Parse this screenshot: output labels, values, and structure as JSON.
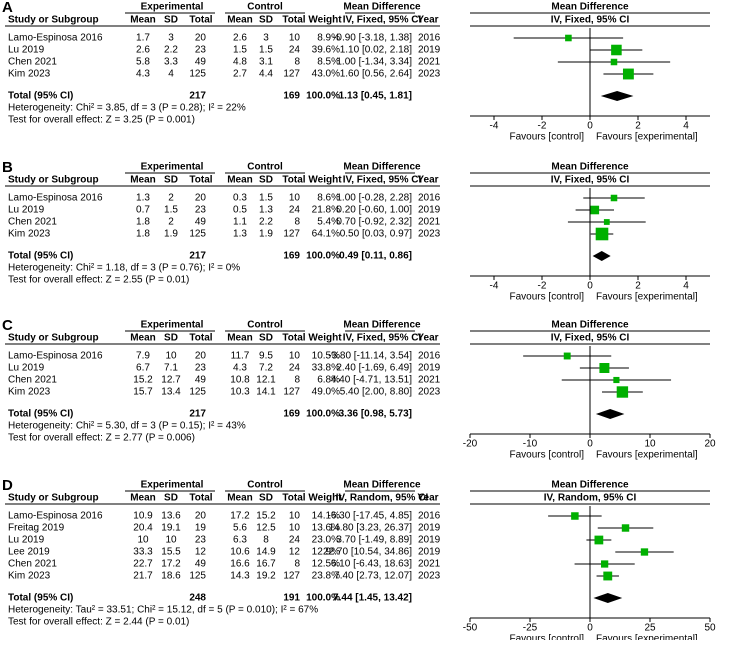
{
  "chart_data": [
    {
      "type": "forest",
      "panel": "A",
      "headers": {
        "experimental": "Experimental",
        "control": "Control",
        "md": "Mean Difference",
        "md_plot": "Mean Difference",
        "study": "Study or Subgroup",
        "exp_mean": "Mean",
        "exp_sd": "SD",
        "exp_n": "Total",
        "ctl_mean": "Mean",
        "ctl_sd": "SD",
        "ctl_n": "Total",
        "weight": "Weight",
        "method": "IV, Fixed, 95% CI",
        "year": "Year",
        "method_plot": "IV, Fixed, 95% CI"
      },
      "studies": [
        {
          "study": "Lamo-Espinosa 2016",
          "exp_mean": 1.7,
          "exp_sd": 3,
          "exp_n": 20,
          "ctl_mean": 2.6,
          "ctl_sd": 3,
          "ctl_n": 10,
          "weight": 8.9,
          "weight_label": "8.9%",
          "md": -0.9,
          "ci_low": -3.18,
          "ci_high": 1.38,
          "ci_label": "-0.90 [-3.18, 1.38]",
          "year": 2016
        },
        {
          "study": "Lu 2019",
          "exp_mean": 2.6,
          "exp_sd": 2.2,
          "exp_n": 23,
          "ctl_mean": 1.5,
          "ctl_sd": 1.5,
          "ctl_n": 24,
          "weight": 39.6,
          "weight_label": "39.6%",
          "md": 1.1,
          "ci_low": 0.02,
          "ci_high": 2.18,
          "ci_label": "1.10 [0.02, 2.18]",
          "year": 2019
        },
        {
          "study": "Chen 2021",
          "exp_mean": 5.8,
          "exp_sd": 3.3,
          "exp_n": 49,
          "ctl_mean": 4.8,
          "ctl_sd": 3.1,
          "ctl_n": 8,
          "weight": 8.5,
          "weight_label": "8.5%",
          "md": 1.0,
          "ci_low": -1.34,
          "ci_high": 3.34,
          "ci_label": "1.00 [-1.34, 3.34]",
          "year": 2021
        },
        {
          "study": "Kim 2023",
          "exp_mean": 4.3,
          "exp_sd": 4,
          "exp_n": 125,
          "ctl_mean": 2.7,
          "ctl_sd": 4.4,
          "ctl_n": 127,
          "weight": 43.0,
          "weight_label": "43.0%",
          "md": 1.6,
          "ci_low": 0.56,
          "ci_high": 2.64,
          "ci_label": "1.60 [0.56, 2.64]",
          "year": 2023
        }
      ],
      "total": {
        "label": "Total (95% CI)",
        "exp_n": 217,
        "ctl_n": 169,
        "weight": 100,
        "weight_label": "100.0%",
        "md": 1.13,
        "ci_low": 0.45,
        "ci_high": 1.81,
        "ci_label": "1.13 [0.45, 1.81]"
      },
      "heterogeneity": "Heterogeneity: Chi² = 3.85, df = 3 (P = 0.28); I² = 22%",
      "overall_effect": "Test for overall effect: Z = 3.25 (P = 0.001)",
      "favours_left": "Favours [control]",
      "favours_right": "Favours [experimental]",
      "xlim": [
        -5,
        5
      ],
      "xticks": [
        -4,
        -2,
        0,
        2,
        4
      ],
      "color": "#00b000"
    },
    {
      "type": "forest",
      "panel": "B",
      "headers": {
        "experimental": "Experimental",
        "control": "Control",
        "md": "Mean Difference",
        "md_plot": "Mean Difference",
        "study": "Study or Subgroup",
        "exp_mean": "Mean",
        "exp_sd": "SD",
        "exp_n": "Total",
        "ctl_mean": "Mean",
        "ctl_sd": "SD",
        "ctl_n": "Total",
        "weight": "Weight",
        "method": "IV, Fixed, 95% CI",
        "year": "Year",
        "method_plot": "IV, Fixed, 95% CI"
      },
      "studies": [
        {
          "study": "Lamo-Espinosa 2016",
          "exp_mean": 1.3,
          "exp_sd": 2,
          "exp_n": 20,
          "ctl_mean": 0.3,
          "ctl_sd": 1.5,
          "ctl_n": 10,
          "weight": 8.6,
          "weight_label": "8.6%",
          "md": 1.0,
          "ci_low": -0.28,
          "ci_high": 2.28,
          "ci_label": "1.00 [-0.28, 2.28]",
          "year": 2016
        },
        {
          "study": "Lu 2019",
          "exp_mean": 0.7,
          "exp_sd": 1.5,
          "exp_n": 23,
          "ctl_mean": 0.5,
          "ctl_sd": 1.3,
          "ctl_n": 24,
          "weight": 21.8,
          "weight_label": "21.8%",
          "md": 0.2,
          "ci_low": -0.6,
          "ci_high": 1.0,
          "ci_label": "0.20 [-0.60, 1.00]",
          "year": 2019
        },
        {
          "study": "Chen 2021",
          "exp_mean": 1.8,
          "exp_sd": 2,
          "exp_n": 49,
          "ctl_mean": 1.1,
          "ctl_sd": 2.2,
          "ctl_n": 8,
          "weight": 5.4,
          "weight_label": "5.4%",
          "md": 0.7,
          "ci_low": -0.92,
          "ci_high": 2.32,
          "ci_label": "0.70 [-0.92, 2.32]",
          "year": 2021
        },
        {
          "study": "Kim 2023",
          "exp_mean": 1.8,
          "exp_sd": 1.9,
          "exp_n": 125,
          "ctl_mean": 1.3,
          "ctl_sd": 1.9,
          "ctl_n": 127,
          "weight": 64.1,
          "weight_label": "64.1%",
          "md": 0.5,
          "ci_low": 0.03,
          "ci_high": 0.97,
          "ci_label": "0.50 [0.03, 0.97]",
          "year": 2023
        }
      ],
      "total": {
        "label": "Total (95% CI)",
        "exp_n": 217,
        "ctl_n": 169,
        "weight": 100,
        "weight_label": "100.0%",
        "md": 0.49,
        "ci_low": 0.11,
        "ci_high": 0.86,
        "ci_label": "0.49 [0.11, 0.86]"
      },
      "heterogeneity": "Heterogeneity: Chi² = 1.18, df = 3 (P = 0.76); I² = 0%",
      "overall_effect": "Test for overall effect: Z = 2.55 (P = 0.01)",
      "favours_left": "Favours [control]",
      "favours_right": "Favours [experimental]",
      "xlim": [
        -5,
        5
      ],
      "xticks": [
        -4,
        -2,
        0,
        2,
        4
      ],
      "color": "#00b000"
    },
    {
      "type": "forest",
      "panel": "C",
      "headers": {
        "experimental": "Experimental",
        "control": "Control",
        "md": "Mean Difference",
        "md_plot": "Mean Difference",
        "study": "Study or Subgroup",
        "exp_mean": "Mean",
        "exp_sd": "SD",
        "exp_n": "Total",
        "ctl_mean": "Mean",
        "ctl_sd": "SD",
        "ctl_n": "Total",
        "weight": "Weight",
        "method": "IV, Fixed, 95% CI",
        "year": "Year",
        "method_plot": "IV, Fixed, 95% CI"
      },
      "studies": [
        {
          "study": "Lamo-Espinosa 2016",
          "exp_mean": 7.9,
          "exp_sd": 10,
          "exp_n": 20,
          "ctl_mean": 11.7,
          "ctl_sd": 9.5,
          "ctl_n": 10,
          "weight": 10.5,
          "weight_label": "10.5%",
          "md": -3.8,
          "ci_low": -11.14,
          "ci_high": 3.54,
          "ci_label": "-3.80 [-11.14, 3.54]",
          "year": 2016
        },
        {
          "study": "Lu 2019",
          "exp_mean": 6.7,
          "exp_sd": 7.1,
          "exp_n": 23,
          "ctl_mean": 4.3,
          "ctl_sd": 7.2,
          "ctl_n": 24,
          "weight": 33.8,
          "weight_label": "33.8%",
          "md": 2.4,
          "ci_low": -1.69,
          "ci_high": 6.49,
          "ci_label": "2.40 [-1.69, 6.49]",
          "year": 2019
        },
        {
          "study": "Chen 2021",
          "exp_mean": 15.2,
          "exp_sd": 12.7,
          "exp_n": 49,
          "ctl_mean": 10.8,
          "ctl_sd": 12.1,
          "ctl_n": 8,
          "weight": 6.8,
          "weight_label": "6.8%",
          "md": 4.4,
          "ci_low": -4.71,
          "ci_high": 13.51,
          "ci_label": "4.40 [-4.71, 13.51]",
          "year": 2021
        },
        {
          "study": "Kim 2023",
          "exp_mean": 15.7,
          "exp_sd": 13.4,
          "exp_n": 125,
          "ctl_mean": 10.3,
          "ctl_sd": 14.1,
          "ctl_n": 127,
          "weight": 49.0,
          "weight_label": "49.0%",
          "md": 5.4,
          "ci_low": 2.0,
          "ci_high": 8.8,
          "ci_label": "5.40 [2.00, 8.80]",
          "year": 2023
        }
      ],
      "total": {
        "label": "Total (95% CI)",
        "exp_n": 217,
        "ctl_n": 169,
        "weight": 100,
        "weight_label": "100.0%",
        "md": 3.36,
        "ci_low": 0.98,
        "ci_high": 5.73,
        "ci_label": "3.36 [0.98, 5.73]"
      },
      "heterogeneity": "Heterogeneity: Chi² = 5.30, df = 3 (P = 0.15); I² = 43%",
      "overall_effect": "Test for overall effect: Z = 2.77 (P = 0.006)",
      "favours_left": "Favours [control]",
      "favours_right": "Favours [experimental]",
      "xlim": [
        -20,
        20
      ],
      "xticks": [
        -20,
        -10,
        0,
        10,
        20
      ],
      "color": "#00b000"
    },
    {
      "type": "forest",
      "panel": "D",
      "headers": {
        "experimental": "Experimental",
        "control": "Control",
        "md": "Mean Difference",
        "md_plot": "Mean Difference",
        "study": "Study or Subgroup",
        "exp_mean": "Mean",
        "exp_sd": "SD",
        "exp_n": "Total",
        "ctl_mean": "Mean",
        "ctl_sd": "SD",
        "ctl_n": "Total",
        "weight": "Weight",
        "method": "IV, Random, 95% CI",
        "year": "Year",
        "method_plot": "IV, Random, 95% CI"
      },
      "studies": [
        {
          "study": "Lamo-Espinosa 2016",
          "exp_mean": 10.9,
          "exp_sd": 13.6,
          "exp_n": 20,
          "ctl_mean": 17.2,
          "ctl_sd": 15.2,
          "ctl_n": 10,
          "weight": 14.1,
          "weight_label": "14.1%",
          "md": -6.3,
          "ci_low": -17.45,
          "ci_high": 4.85,
          "ci_label": "-6.30 [-17.45, 4.85]",
          "year": 2016
        },
        {
          "study": "Freitag 2019",
          "exp_mean": 20.4,
          "exp_sd": 19.1,
          "exp_n": 19,
          "ctl_mean": 5.6,
          "ctl_sd": 12.5,
          "ctl_n": 10,
          "weight": 13.6,
          "weight_label": "13.6%",
          "md": 14.8,
          "ci_low": 3.23,
          "ci_high": 26.37,
          "ci_label": "14.80 [3.23, 26.37]",
          "year": 2019
        },
        {
          "study": "Lu 2019",
          "exp_mean": 10,
          "exp_sd": 10,
          "exp_n": 23,
          "ctl_mean": 6.3,
          "ctl_sd": 8,
          "ctl_n": 24,
          "weight": 23.0,
          "weight_label": "23.0%",
          "md": 3.7,
          "ci_low": -1.49,
          "ci_high": 8.89,
          "ci_label": "3.70 [-1.49, 8.89]",
          "year": 2019
        },
        {
          "study": "Lee 2019",
          "exp_mean": 33.3,
          "exp_sd": 15.5,
          "exp_n": 12,
          "ctl_mean": 10.6,
          "ctl_sd": 14.9,
          "ctl_n": 12,
          "weight": 12.9,
          "weight_label": "12.9%",
          "md": 22.7,
          "ci_low": 10.54,
          "ci_high": 34.86,
          "ci_label": "22.70 [10.54, 34.86]",
          "year": 2019
        },
        {
          "study": "Chen 2021",
          "exp_mean": 22.7,
          "exp_sd": 17.2,
          "exp_n": 49,
          "ctl_mean": 16.6,
          "ctl_sd": 16.7,
          "ctl_n": 8,
          "weight": 12.5,
          "weight_label": "12.5%",
          "md": 6.1,
          "ci_low": -6.43,
          "ci_high": 18.63,
          "ci_label": "6.10 [-6.43, 18.63]",
          "year": 2021
        },
        {
          "study": "Kim 2023",
          "exp_mean": 21.7,
          "exp_sd": 18.6,
          "exp_n": 125,
          "ctl_mean": 14.3,
          "ctl_sd": 19.2,
          "ctl_n": 127,
          "weight": 23.8,
          "weight_label": "23.8%",
          "md": 7.4,
          "ci_low": 2.73,
          "ci_high": 12.07,
          "ci_label": "7.40 [2.73, 12.07]",
          "year": 2023
        }
      ],
      "total": {
        "label": "Total (95% CI)",
        "exp_n": 248,
        "ctl_n": 191,
        "weight": 100,
        "weight_label": "100.0%",
        "md": 7.44,
        "ci_low": 1.45,
        "ci_high": 13.42,
        "ci_label": "7.44 [1.45, 13.42]"
      },
      "heterogeneity": "Heterogeneity: Tau² = 33.51; Chi² = 15.12, df = 5 (P = 0.010); I² = 67%",
      "overall_effect": "Test for overall effect: Z = 2.44 (P = 0.01)",
      "favours_left": "Favours [control]",
      "favours_right": "Favours [experimental]",
      "xlim": [
        -50,
        50
      ],
      "xticks": [
        -50,
        -25,
        0,
        25,
        50
      ],
      "color": "#00b000"
    }
  ]
}
